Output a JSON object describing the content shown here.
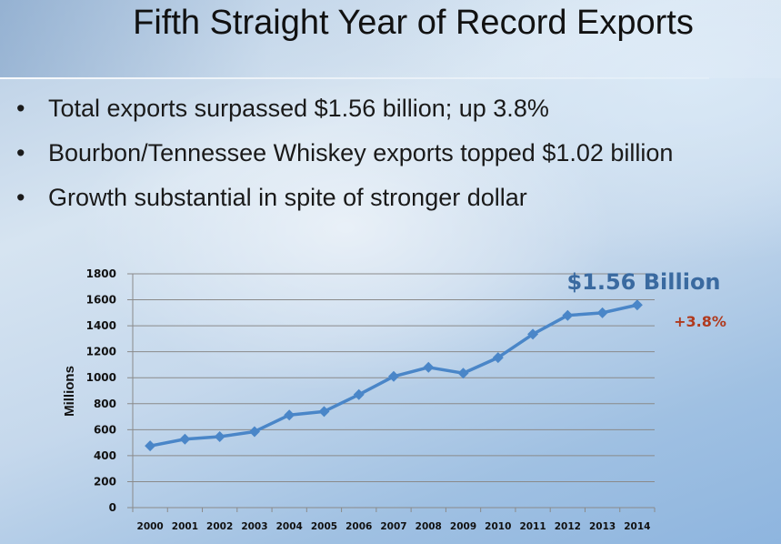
{
  "slide": {
    "title": "Fifth Straight Year of Record Exports",
    "bullets": [
      "Total exports surpassed $1.56 billion; up 3.8%",
      "Bourbon/Tennessee Whiskey exports topped $1.02 billion",
      "Growth substantial in spite of stronger dollar"
    ],
    "bullet_glyph": "•"
  },
  "chart_data": {
    "type": "line",
    "x": [
      "2000",
      "2001",
      "2002",
      "2003",
      "2004",
      "2005",
      "2006",
      "2007",
      "2008",
      "2009",
      "2010",
      "2011",
      "2012",
      "2013",
      "2014"
    ],
    "series": [
      {
        "values": [
          475,
          527,
          546,
          585,
          713,
          740,
          870,
          1010,
          1080,
          1035,
          1155,
          1335,
          1480,
          1500,
          1560
        ]
      }
    ],
    "ylabel": "Millions",
    "ylim": [
      0,
      1800
    ],
    "yticks": [
      0,
      200,
      400,
      600,
      800,
      1000,
      1200,
      1400,
      1600,
      1800
    ],
    "grid": true,
    "annotations": [
      {
        "text": "$1.56 Billion",
        "color": "#3a6aa0"
      },
      {
        "text": "+3.8%",
        "color": "#b03a1e"
      }
    ],
    "line_color": "#4a86c8",
    "grid_color": "#8a8a8a"
  }
}
